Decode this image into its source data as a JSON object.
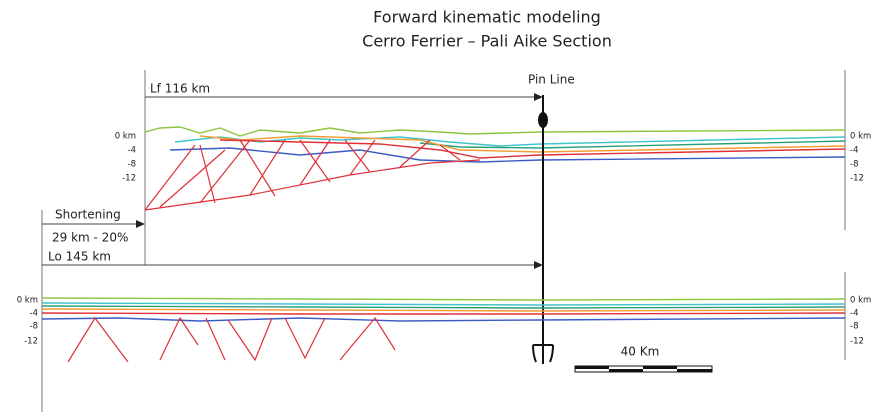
{
  "title": {
    "line1": "Forward kinematic modeling",
    "line2": "Cerro Ferrier – Pali Aike Section"
  },
  "upper_section": {
    "length_label": "Lf 116 km",
    "pin_label": "Pin Line",
    "depth_left": [
      "0 km",
      "-4",
      "-8",
      "-12"
    ],
    "depth_right": [
      "0 km",
      "-4",
      "-8",
      "-12"
    ]
  },
  "shortening": {
    "label": "Shortening",
    "value": "29 km - 20%"
  },
  "lower_section": {
    "length_label": "Lo 145 km",
    "depth_left": [
      "0 km",
      "-4",
      "-8",
      "-12"
    ],
    "depth_right": [
      "0 km",
      "-4",
      "-8",
      "-12"
    ]
  },
  "scale_bar": {
    "label": "40 Km"
  }
}
